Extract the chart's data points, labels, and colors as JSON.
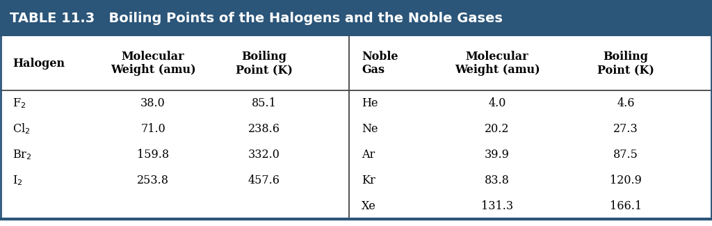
{
  "title": "TABLE 11.3   Boiling Points of the Halogens and the Noble Gases",
  "header_bg": "#2B5579",
  "header_text_color": "#FFFFFF",
  "body_bg": "#FFFFFF",
  "border_color": "#2B5579",
  "col_headers_left": [
    "Halogen",
    "Molecular\nWeight (amu)",
    "Boiling\nPoint (K)"
  ],
  "col_headers_right": [
    "Noble\nGas",
    "Molecular\nWeight (amu)",
    "Boiling\nPoint (K)"
  ],
  "halogen_names": [
    "F$_2$",
    "Cl$_2$",
    "Br$_2$",
    "I$_2$"
  ],
  "halogen_mw": [
    "38.0",
    "71.0",
    "159.8",
    "253.8"
  ],
  "halogen_bp": [
    "85.1",
    "238.6",
    "332.0",
    "457.6"
  ],
  "noble_names": [
    "He",
    "Ne",
    "Ar",
    "Kr",
    "Xe"
  ],
  "noble_mw": [
    "4.0",
    "20.2",
    "39.9",
    "83.8",
    "131.3"
  ],
  "noble_bp": [
    "4.6",
    "27.3",
    "87.5",
    "120.9",
    "166.1"
  ],
  "title_fontsize": 14,
  "header_fontsize": 11.5,
  "body_fontsize": 11.5
}
